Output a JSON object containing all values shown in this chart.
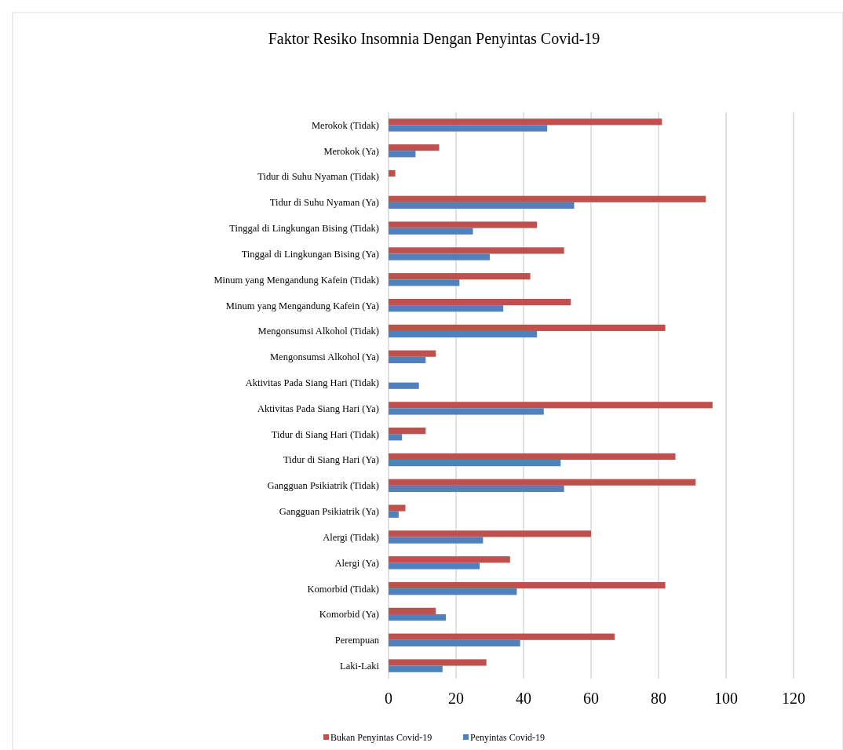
{
  "chart_data": {
    "type": "bar",
    "orientation": "horizontal",
    "title": "Faktor Resiko Insomnia Dengan Penyintas Covid-19",
    "categories": [
      "Merokok (Tidak)",
      "Merokok (Ya)",
      "Tidur di Suhu Nyaman (Tidak)",
      "Tidur di Suhu Nyaman (Ya)",
      "Tinggal di Lingkungan Bising (Tidak)",
      "Tinggal di Lingkungan Bising (Ya)",
      "Minum yang Mengandung Kafein (Tidak)",
      "Minum yang Mengandung Kafein (Ya)",
      "Mengonsumsi Alkohol (Tidak)",
      "Mengonsumsi Alkohol (Ya)",
      "Aktivitas Pada Siang Hari (Tidak)",
      "Aktivitas Pada Siang Hari (Ya)",
      "Tidur di Siang Hari (Tidak)",
      "Tidur di Siang Hari (Ya)",
      "Gangguan Psikiatrik (Tidak)",
      "Gangguan Psikiatrik (Ya)",
      "Alergi (Tidak)",
      "Alergi (Ya)",
      "Komorbid (Tidak)",
      "Komorbid (Ya)",
      "Perempuan",
      "Laki-Laki"
    ],
    "series": [
      {
        "name": "Bukan Penyintas Covid-19",
        "color": "#c0504d",
        "values": [
          81,
          15,
          2,
          94,
          44,
          52,
          42,
          54,
          82,
          14,
          0,
          96,
          11,
          85,
          91,
          5,
          60,
          36,
          82,
          14,
          67,
          29
        ]
      },
      {
        "name": "Penyintas Covid-19",
        "color": "#4f81bd",
        "values": [
          47,
          8,
          0,
          55,
          25,
          30,
          21,
          34,
          44,
          11,
          9,
          46,
          4,
          51,
          52,
          3,
          28,
          27,
          38,
          17,
          39,
          16
        ]
      }
    ],
    "xlim": [
      0,
      120
    ],
    "xticks": [
      0,
      20,
      40,
      60,
      80,
      100,
      120
    ],
    "grid": "x",
    "legend": "bottom"
  }
}
